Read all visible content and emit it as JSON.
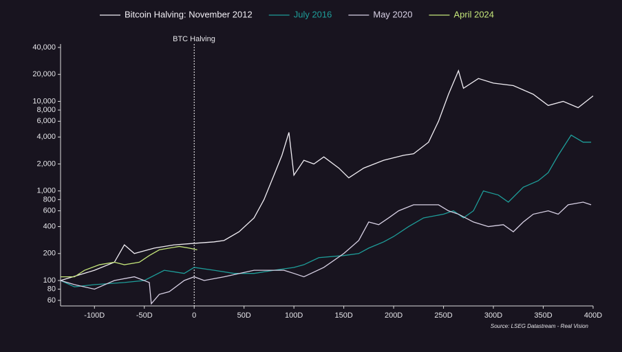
{
  "chart_data": {
    "type": "line",
    "annotation": "BTC Halving",
    "source": "Source: LSEG Datastream - Real Vision",
    "log_scale": true,
    "xlim": [
      -134,
      400
    ],
    "xticks": [
      {
        "value": -100,
        "label": "-100D"
      },
      {
        "value": -50,
        "label": "-50D"
      },
      0,
      {
        "value": 50,
        "label": "50D"
      },
      {
        "value": 100,
        "label": "100D"
      },
      {
        "value": 150,
        "label": "150D"
      },
      {
        "value": 200,
        "label": "200D"
      },
      {
        "value": 250,
        "label": "250D"
      },
      {
        "value": 300,
        "label": "300D"
      },
      {
        "value": 350,
        "label": "350D"
      },
      {
        "value": 400,
        "label": "400D"
      }
    ],
    "ylim": [
      52,
      40000
    ],
    "yticks": [
      60,
      80,
      100,
      200,
      400,
      600,
      800,
      {
        "value": 1000,
        "label": "1,000"
      },
      {
        "value": 2000,
        "label": "2,000"
      },
      {
        "value": 4000,
        "label": "4,000"
      },
      {
        "value": 6000,
        "label": "6,000"
      },
      {
        "value": 8000,
        "label": "8,000"
      },
      {
        "value": 10000,
        "label": "10,000"
      },
      {
        "value": 20000,
        "label": "20,000"
      },
      {
        "value": 40000,
        "label": "40,000"
      }
    ],
    "series": [
      {
        "name": "Bitcoin Halving: November 2012",
        "color": "#f2eff5",
        "x": [
          -134,
          -100,
          -80,
          -70,
          -60,
          -40,
          -20,
          0,
          20,
          30,
          45,
          60,
          70,
          80,
          88,
          95,
          100,
          110,
          120,
          130,
          145,
          155,
          170,
          190,
          210,
          220,
          235,
          245,
          255,
          265,
          270,
          285,
          300,
          320,
          340,
          355,
          370,
          385,
          400
        ],
        "values": [
          100,
          130,
          160,
          250,
          200,
          230,
          250,
          260,
          270,
          280,
          350,
          500,
          800,
          1500,
          2500,
          4500,
          1500,
          2200,
          2000,
          2400,
          1800,
          1400,
          1800,
          2200,
          2500,
          2600,
          3500,
          6000,
          12000,
          22000,
          14000,
          18000,
          16000,
          15000,
          12000,
          9000,
          10000,
          8500,
          11500
        ]
      },
      {
        "name": "July 2016",
        "color": "#1e9e9a",
        "x": [
          -134,
          -120,
          -100,
          -70,
          -50,
          -30,
          -10,
          0,
          20,
          40,
          60,
          80,
          100,
          110,
          125,
          150,
          165,
          175,
          190,
          200,
          215,
          230,
          250,
          260,
          270,
          280,
          290,
          305,
          315,
          330,
          345,
          355,
          365,
          378,
          390,
          398
        ],
        "values": [
          100,
          85,
          90,
          95,
          100,
          130,
          120,
          140,
          130,
          120,
          120,
          130,
          140,
          150,
          180,
          190,
          200,
          230,
          270,
          310,
          400,
          500,
          550,
          600,
          500,
          600,
          1000,
          900,
          750,
          1100,
          1300,
          1600,
          2500,
          4200,
          3500,
          3500
        ]
      },
      {
        "name": "May 2020",
        "color": "#d9d2e6",
        "x": [
          -134,
          -120,
          -100,
          -80,
          -60,
          -45,
          -43,
          -35,
          -25,
          -10,
          0,
          10,
          30,
          60,
          90,
          100,
          110,
          130,
          150,
          165,
          175,
          185,
          195,
          205,
          220,
          245,
          255,
          265,
          280,
          295,
          310,
          320,
          330,
          340,
          355,
          365,
          375,
          390,
          398
        ],
        "values": [
          100,
          90,
          80,
          100,
          110,
          95,
          55,
          70,
          75,
          100,
          110,
          100,
          110,
          130,
          130,
          120,
          110,
          140,
          200,
          280,
          450,
          420,
          500,
          600,
          700,
          700,
          600,
          550,
          450,
          400,
          420,
          350,
          450,
          550,
          600,
          550,
          700,
          750,
          700
        ]
      },
      {
        "name": "April 2024",
        "color": "#c5e67a",
        "x": [
          -134,
          -120,
          -110,
          -95,
          -80,
          -70,
          -55,
          -45,
          -35,
          -25,
          -15,
          -5,
          3
        ],
        "values": [
          110,
          110,
          130,
          150,
          160,
          150,
          160,
          190,
          220,
          230,
          240,
          230,
          220
        ]
      }
    ]
  }
}
